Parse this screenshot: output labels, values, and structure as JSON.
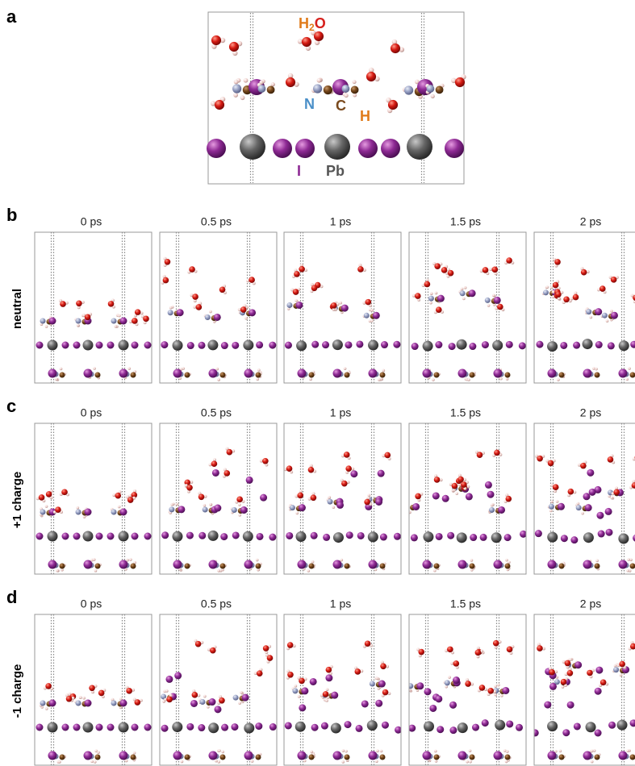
{
  "panel_a": {
    "label": "a",
    "water": {
      "h": "H",
      "sub": "2",
      "o": "O"
    },
    "atoms": {
      "n": "N",
      "c": "C",
      "h": "H",
      "i": "I",
      "pb": "Pb"
    }
  },
  "rows": [
    {
      "label": "b",
      "condition": "neutral",
      "times": [
        "0 ps",
        "0.5 ps",
        "1 ps",
        "1.5 ps",
        "2 ps"
      ]
    },
    {
      "label": "c",
      "condition": "+1 charge",
      "times": [
        "0 ps",
        "0.5 ps",
        "1 ps",
        "1.5 ps",
        "2 ps"
      ]
    },
    {
      "label": "d",
      "condition": "-1 charge",
      "times": [
        "0 ps",
        "0.5 ps",
        "1 ps",
        "1.5 ps",
        "2 ps"
      ]
    }
  ]
}
